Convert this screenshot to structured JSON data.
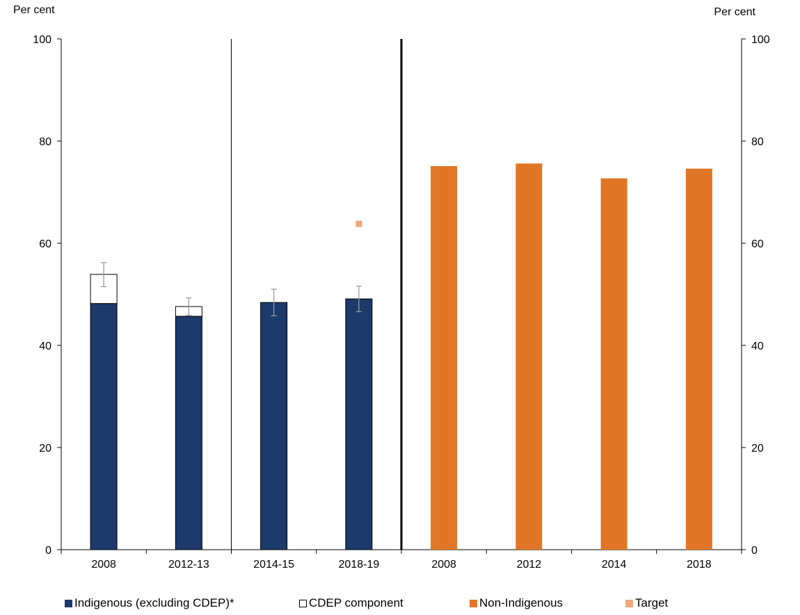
{
  "chart_data": {
    "type": "bar",
    "left_axis": {
      "label": "Per cent",
      "ylim": [
        0,
        100
      ],
      "ticks": [
        "0",
        "20",
        "40",
        "60",
        "80",
        "100"
      ]
    },
    "right_axis": {
      "label": "Per cent",
      "ylim": [
        0,
        100
      ],
      "ticks": [
        "0",
        "20",
        "40",
        "60",
        "80",
        "100"
      ]
    },
    "categories": [
      "2008",
      "2012-13",
      "2014-15",
      "2018-19",
      "2008",
      "2012",
      "2014",
      "2018"
    ],
    "series": [
      {
        "name": "Indigenous (excluding CDEP)*",
        "color": "#1c3a6b",
        "values": [
          48.2,
          45.7,
          48.4,
          49.1,
          null,
          null,
          null,
          null
        ],
        "error_low": [
          null,
          null,
          45.8,
          46.6,
          null,
          null,
          null,
          null
        ],
        "error_high": [
          null,
          null,
          51.0,
          51.6,
          null,
          null,
          null,
          null
        ]
      },
      {
        "name": "CDEP component",
        "color": "#ffffff",
        "stacked_on": "Indigenous (excluding CDEP)*",
        "values": [
          5.7,
          1.9,
          null,
          null,
          null,
          null,
          null,
          null
        ],
        "error_low": [
          51.5,
          45.9,
          null,
          null,
          null,
          null,
          null,
          null
        ],
        "error_high": [
          56.2,
          49.3,
          null,
          null,
          null,
          null,
          null,
          null
        ]
      },
      {
        "name": "Non-Indigenous",
        "color": "#e07626",
        "values": [
          null,
          null,
          null,
          null,
          75.1,
          75.6,
          72.7,
          74.6
        ]
      },
      {
        "name": "Target",
        "color": "#f0a77a",
        "marker": "square",
        "values": [
          null,
          null,
          null,
          63.8,
          null,
          null,
          null,
          null
        ]
      }
    ],
    "grid": false,
    "legend_position": "bottom"
  }
}
